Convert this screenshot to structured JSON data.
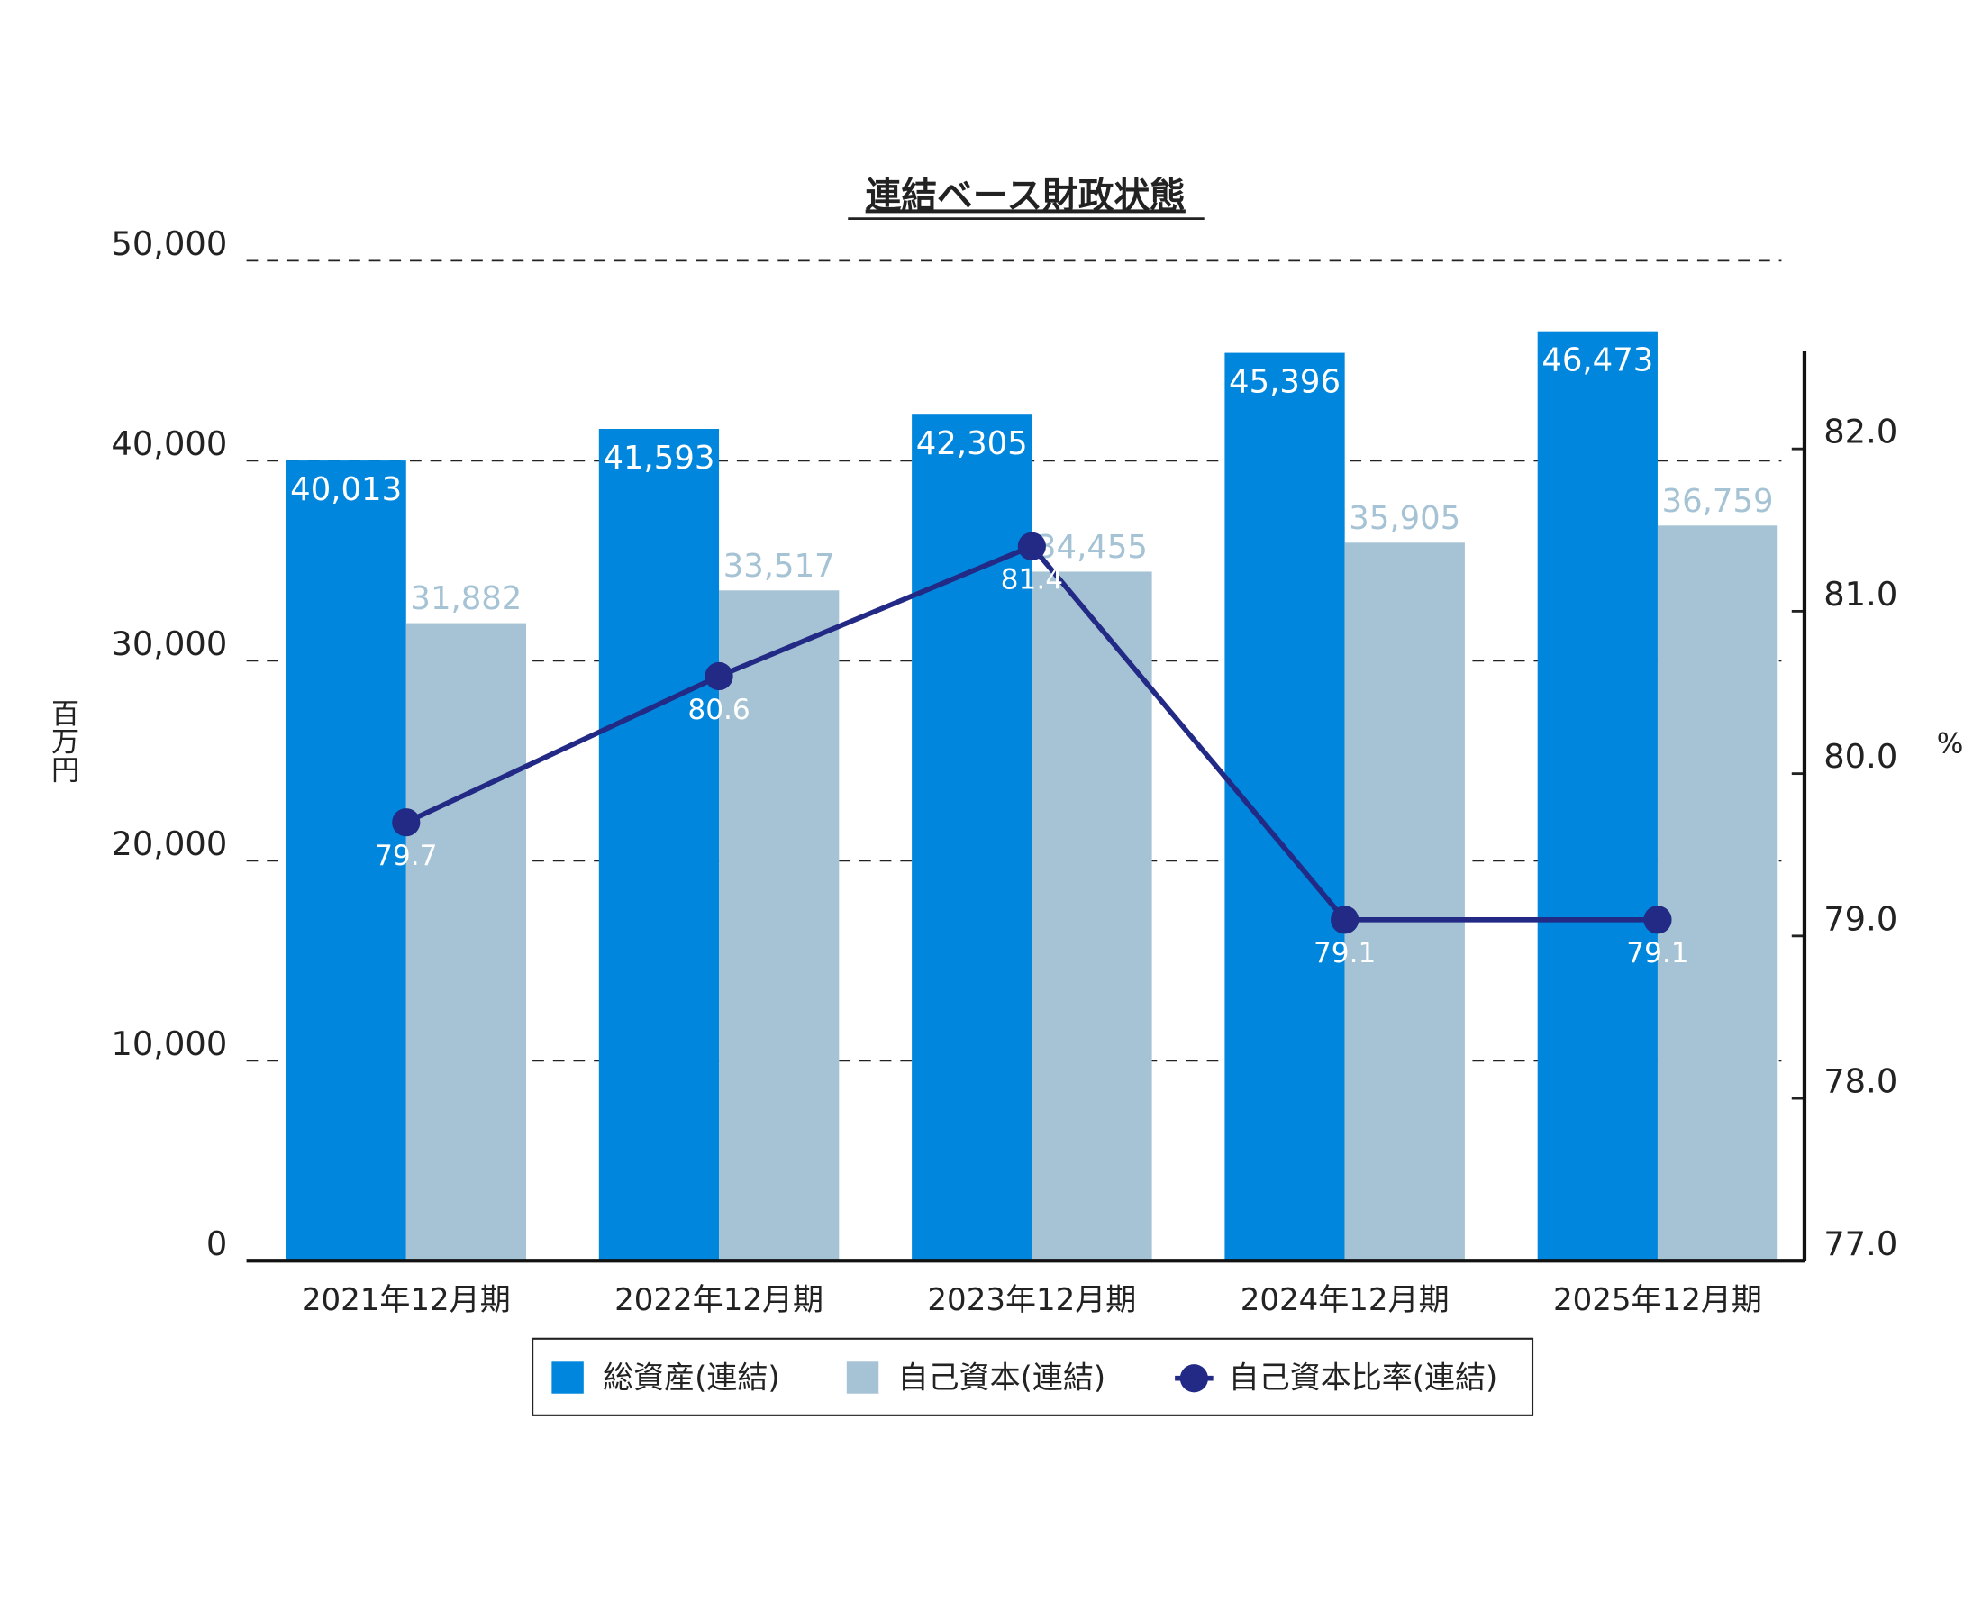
{
  "chart_data": {
    "type": "bar-line",
    "title": "連結ベース財政状態",
    "y_label": "百万円",
    "y2_label": "%",
    "categories": [
      "2021年12月期",
      "2022年12月期",
      "2023年12月期",
      "2024年12月期",
      "2025年12月期"
    ],
    "series": [
      {
        "name": "総資産(連結)",
        "type": "bar",
        "color": "#0086dc",
        "values": [
          40013,
          41593,
          42305,
          45396,
          46473
        ],
        "value_labels": [
          "40,013",
          "41,593",
          "42,305",
          "45,396",
          "46,473"
        ]
      },
      {
        "name": "自己資本(連結)",
        "type": "bar",
        "color": "#a5c3d4",
        "values": [
          31882,
          33517,
          34455,
          35905,
          36759
        ],
        "value_labels": [
          "31,882",
          "33,517",
          "34,455",
          "35,905",
          "36,759"
        ]
      },
      {
        "name": "自己資本比率(連結)",
        "type": "line",
        "axis": "y2",
        "color": "#222a85",
        "values": [
          79.7,
          80.6,
          81.4,
          79.1,
          79.1
        ]
      }
    ],
    "ylim": [
      0,
      50000
    ],
    "yticks": [
      0,
      {
        "value": 10000,
        "label": "10,000"
      },
      {
        "value": 20000,
        "label": "20,000"
      },
      {
        "value": 30000,
        "label": "30,000"
      },
      {
        "value": 40000,
        "label": "40,000"
      },
      {
        "value": 50000,
        "label": "50,000"
      }
    ],
    "y2lim": [
      77,
      82.6
    ],
    "y2ticks": [
      {
        "value": 77,
        "label": "77.0"
      },
      {
        "value": 78,
        "label": "78.0"
      },
      {
        "value": 79,
        "label": "79.0"
      },
      {
        "value": 80,
        "label": "80.0"
      },
      {
        "value": 81,
        "label": "81.0"
      },
      {
        "value": 82,
        "label": "82.0"
      }
    ],
    "grid": true,
    "legend": "bottom"
  }
}
